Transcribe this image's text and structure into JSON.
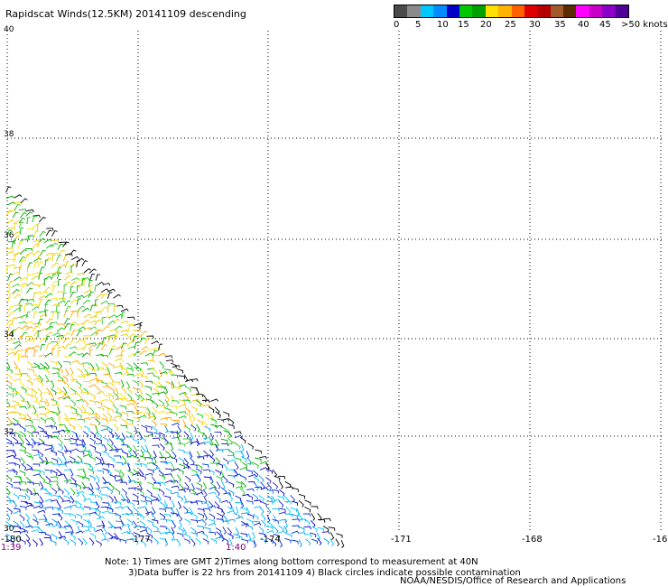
{
  "title": "Rapidscat Winds(12.5KM) 20141109 descending",
  "legend": {
    "colors": [
      "#4a4a4a",
      "#8a8a8a",
      "#00c8ff",
      "#008cff",
      "#0000c8",
      "#00c800",
      "#00a000",
      "#ffe000",
      "#ffb000",
      "#ff6000",
      "#e00000",
      "#b40000",
      "#a05a2c",
      "#5a2c00",
      "#ff00ff",
      "#c800c8",
      "#8c00c8",
      "#500096"
    ],
    "labels": [
      "0",
      "5",
      "10",
      "15",
      "20",
      "25",
      "30",
      "35",
      "40",
      "45",
      ">50 knots"
    ]
  },
  "axes": {
    "x_ticks": [
      "-180",
      "-177",
      "-174",
      "-171",
      "-168",
      "-16"
    ],
    "y_ticks": [
      "40",
      "38",
      "36",
      "34",
      "32",
      "30"
    ]
  },
  "times": {
    "left": "1:39",
    "right": "1:40"
  },
  "notes": [
    "Note: 1) Times are GMT 2)Times along bottom correspond to measurement at 40N",
    "3)Data buffer is 22 hrs from 20141109 4) Black circles indicate possible contamination"
  ],
  "credit": "NOAA/NESDIS/Office of Research and Applications"
}
